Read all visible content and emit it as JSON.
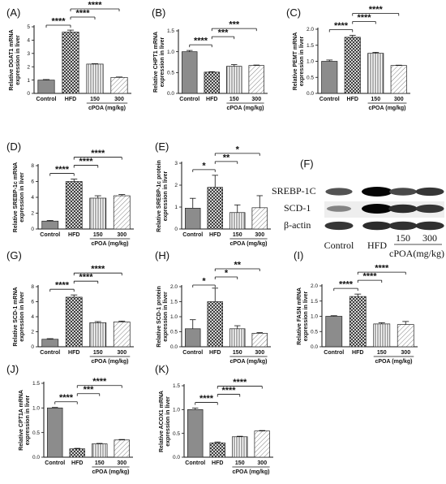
{
  "fill_colors": {
    "control": "#8c8c8c",
    "hfd": "#ffffff",
    "dose150": "#ffffff",
    "dose300": "#ffffff"
  },
  "chart_data": [
    {
      "panel": "(A)",
      "type": "bar",
      "ylabel": "Relative DGAT1 mRNA expression in liver",
      "categories": [
        "Control",
        "HFD",
        "150",
        "300"
      ],
      "group_label": "cPOA (mg/kg)",
      "values": [
        1.0,
        4.6,
        2.2,
        1.2
      ],
      "errors": [
        0.04,
        0.15,
        0.03,
        0.03
      ],
      "ylim": [
        0,
        5
      ],
      "yticks": [
        "0",
        "1",
        "2",
        "3",
        "4",
        "5"
      ],
      "significance": [
        {
          "from": 0,
          "to": 1,
          "label": "****"
        },
        {
          "from": 1,
          "to": 2,
          "label": "****"
        },
        {
          "from": 1,
          "to": 3,
          "label": "****"
        }
      ]
    },
    {
      "panel": "(B)",
      "type": "bar",
      "ylabel": "Relative CHPT1 mRNA expression in liver",
      "categories": [
        "Control",
        "HFD",
        "150",
        "300"
      ],
      "group_label": "cPOA (mg/kg)",
      "values": [
        1.0,
        0.51,
        0.65,
        0.67
      ],
      "errors": [
        0.03,
        0.01,
        0.04,
        0.01
      ],
      "ylim": [
        0,
        1.5
      ],
      "yticks": [
        "0.0",
        "0.5",
        "1.0",
        "1.5"
      ],
      "significance": [
        {
          "from": 0,
          "to": 1,
          "label": "****"
        },
        {
          "from": 1,
          "to": 2,
          "label": "***"
        },
        {
          "from": 1,
          "to": 3,
          "label": "***"
        }
      ]
    },
    {
      "panel": "(C)",
      "type": "bar",
      "ylabel": "Relative PEMT mRNA expression in liver",
      "categories": [
        "Control",
        "HFD",
        "150",
        "300"
      ],
      "group_label": "cPOA (mg/kg)",
      "values": [
        1.0,
        1.75,
        1.25,
        0.87
      ],
      "errors": [
        0.04,
        0.06,
        0.03,
        0.01
      ],
      "ylim": [
        0,
        2.0
      ],
      "yticks": [
        "0.0",
        "0.5",
        "1.0",
        "1.5",
        "2.0"
      ],
      "significance": [
        {
          "from": 0,
          "to": 1,
          "label": "****"
        },
        {
          "from": 1,
          "to": 2,
          "label": "****"
        },
        {
          "from": 1,
          "to": 3,
          "label": "****"
        }
      ]
    },
    {
      "panel": "(D)",
      "type": "bar",
      "ylabel": "Relative SREBP-1c mRNA expression in liver",
      "categories": [
        "Control",
        "HFD",
        "150",
        "300"
      ],
      "group_label": "cPOA (mg/kg)",
      "values": [
        1.0,
        6.0,
        3.9,
        4.2
      ],
      "errors": [
        0.08,
        0.3,
        0.3,
        0.15
      ],
      "ylim": [
        0,
        8
      ],
      "yticks": [
        "0",
        "2",
        "4",
        "6",
        "8"
      ],
      "significance": [
        {
          "from": 0,
          "to": 1,
          "label": "****"
        },
        {
          "from": 1,
          "to": 2,
          "label": "****"
        },
        {
          "from": 1,
          "to": 3,
          "label": "****"
        }
      ]
    },
    {
      "panel": "(E)",
      "type": "bar",
      "ylabel": "Relative SREBP-1c protein expression in liver",
      "categories": [
        "Control",
        "HFD",
        "150",
        "300"
      ],
      "group_label": "cPOA (mg/kg)",
      "values": [
        0.95,
        1.9,
        0.75,
        0.97
      ],
      "errors": [
        0.45,
        0.55,
        0.35,
        0.55
      ],
      "ylim": [
        0,
        3
      ],
      "yticks": [
        "0",
        "1",
        "2",
        "3"
      ],
      "significance": [
        {
          "from": 0,
          "to": 1,
          "label": "*"
        },
        {
          "from": 1,
          "to": 2,
          "label": "**"
        },
        {
          "from": 1,
          "to": 3,
          "label": "*"
        }
      ]
    },
    {
      "panel": "(G)",
      "type": "bar",
      "ylabel": "Relative SCD-1 mRNA expression in liver",
      "categories": [
        "Control",
        "HFD",
        "150",
        "300"
      ],
      "group_label": "cPOA (mg/kg)",
      "values": [
        1.0,
        6.6,
        3.2,
        3.3
      ],
      "errors": [
        0.08,
        0.3,
        0.15,
        0.12
      ],
      "ylim": [
        0,
        8
      ],
      "yticks": [
        "0",
        "2",
        "4",
        "6",
        "8"
      ],
      "significance": [
        {
          "from": 0,
          "to": 1,
          "label": "****"
        },
        {
          "from": 1,
          "to": 2,
          "label": "****"
        },
        {
          "from": 1,
          "to": 3,
          "label": "****"
        }
      ]
    },
    {
      "panel": "(H)",
      "type": "bar",
      "ylabel": "Relative SCD-1 protein expression in liver",
      "categories": [
        "Control",
        "HFD",
        "150",
        "300"
      ],
      "group_label": "cPOA (mg/kg)",
      "values": [
        0.6,
        1.5,
        0.6,
        0.45
      ],
      "errors": [
        0.3,
        0.45,
        0.1,
        0.02
      ],
      "ylim": [
        0,
        2.0
      ],
      "yticks": [
        "0.0",
        "0.5",
        "1.0",
        "1.5",
        "2.0"
      ],
      "significance": [
        {
          "from": 0,
          "to": 1,
          "label": "*"
        },
        {
          "from": 1,
          "to": 2,
          "label": "*"
        },
        {
          "from": 1,
          "to": 3,
          "label": "**"
        }
      ]
    },
    {
      "panel": "(I)",
      "type": "bar",
      "ylabel": "Relative FASN mRNA expression in liver",
      "categories": [
        "Control",
        "HFD",
        "150",
        "300"
      ],
      "group_label": "cPOA (mg/kg)",
      "values": [
        1.0,
        1.65,
        0.75,
        0.73
      ],
      "errors": [
        0.02,
        0.08,
        0.04,
        0.1
      ],
      "ylim": [
        0,
        2.0
      ],
      "yticks": [
        "0.0",
        "0.5",
        "1.0",
        "1.5",
        "2.0"
      ],
      "significance": [
        {
          "from": 0,
          "to": 1,
          "label": "****"
        },
        {
          "from": 1,
          "to": 2,
          "label": "****"
        },
        {
          "from": 1,
          "to": 3,
          "label": "****"
        }
      ]
    },
    {
      "panel": "(J)",
      "type": "bar",
      "ylabel": "Relative CPT1A mRNA expression in liver",
      "categories": [
        "Control",
        "HFD",
        "150",
        "300"
      ],
      "group_label": "cPOA (mg/kg)",
      "values": [
        1.0,
        0.17,
        0.27,
        0.35
      ],
      "errors": [
        0.01,
        0.01,
        0.01,
        0.01
      ],
      "ylim": [
        0,
        1.5
      ],
      "yticks": [
        "0.0",
        "0.5",
        "1.0",
        "1.5"
      ],
      "significance": [
        {
          "from": 0,
          "to": 1,
          "label": "****"
        },
        {
          "from": 1,
          "to": 2,
          "label": "***"
        },
        {
          "from": 1,
          "to": 3,
          "label": "****"
        }
      ]
    },
    {
      "panel": "(K)",
      "type": "bar",
      "ylabel": "Relative ACOX1 mRNA expression in liver",
      "categories": [
        "Control",
        "HFD",
        "150",
        "300"
      ],
      "group_label": "cPOA (mg/kg)",
      "values": [
        1.0,
        0.3,
        0.43,
        0.55
      ],
      "errors": [
        0.03,
        0.02,
        0.01,
        0.01
      ],
      "ylim": [
        0,
        1.5
      ],
      "yticks": [
        "0.0",
        "0.5",
        "1.0",
        "1.5"
      ],
      "significance": [
        {
          "from": 0,
          "to": 1,
          "label": "****"
        },
        {
          "from": 1,
          "to": 2,
          "label": "****"
        },
        {
          "from": 1,
          "to": 3,
          "label": "****"
        }
      ]
    }
  ],
  "western_blot": {
    "panel": "(F)",
    "rows": [
      "SREBP-1C",
      "SCD-1",
      "β-actin"
    ],
    "lanes": [
      "Control",
      "HFD",
      "150",
      "300"
    ],
    "group_label": "cPOA(mg/kg)",
    "band_intensity": [
      [
        0.6,
        1.0,
        0.65,
        0.75
      ],
      [
        0.35,
        1.0,
        0.8,
        0.75
      ],
      [
        0.75,
        0.8,
        0.78,
        0.78
      ]
    ]
  }
}
